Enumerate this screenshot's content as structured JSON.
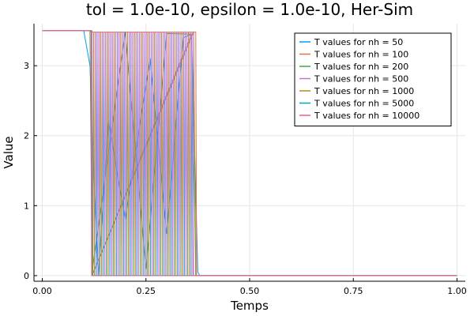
{
  "chart_data": {
    "type": "line",
    "title": "tol = 1.0e-10, epsilon = 1.0e-10, Her-Sim",
    "xlabel": "Temps",
    "ylabel": "Value",
    "xlim": [
      -0.02,
      1.02
    ],
    "ylim": [
      -0.08,
      3.6
    ],
    "x_ticks": [
      0.0,
      0.25,
      0.5,
      0.75,
      1.0
    ],
    "x_tick_labels": [
      "0.00",
      "0.25",
      "0.50",
      "0.75",
      "1.00"
    ],
    "y_ticks": [
      0,
      1,
      2,
      3
    ],
    "y_tick_labels": [
      "0",
      "1",
      "2",
      "3"
    ],
    "grid": true,
    "legend_position": "top-right",
    "series": [
      {
        "name": "T values for nh = 50",
        "color": "#009AFA",
        "points": [
          [
            0.0,
            3.5
          ],
          [
            0.1,
            3.5
          ],
          [
            0.115,
            3.0
          ],
          [
            0.125,
            1.4
          ],
          [
            0.135,
            0.0
          ],
          [
            0.16,
            2.2
          ],
          [
            0.2,
            0.8
          ],
          [
            0.26,
            3.1
          ],
          [
            0.3,
            0.6
          ],
          [
            0.34,
            3.4
          ],
          [
            0.36,
            3.45
          ],
          [
            0.375,
            0.05
          ],
          [
            0.38,
            0.0
          ],
          [
            1.0,
            0.0
          ]
        ]
      },
      {
        "name": "T values for nh = 100",
        "color": "#E36F47",
        "points": [
          [
            0.0,
            3.5
          ],
          [
            0.115,
            3.5
          ],
          [
            0.118,
            3.48
          ],
          [
            0.37,
            3.48
          ],
          [
            0.372,
            0.0
          ],
          [
            1.0,
            0.0
          ]
        ]
      },
      {
        "name": "T values for nh = 200",
        "color": "#3EA44E",
        "points": [
          [
            0.0,
            3.5
          ],
          [
            0.115,
            3.5
          ],
          [
            0.12,
            0.05
          ],
          [
            0.2,
            3.48
          ],
          [
            0.25,
            0.1
          ],
          [
            0.3,
            3.46
          ],
          [
            0.36,
            3.45
          ],
          [
            0.37,
            0.0
          ],
          [
            1.0,
            0.0
          ]
        ]
      },
      {
        "name": "T values for nh = 500",
        "color": "#C371D2",
        "points": [
          [
            0.0,
            3.5
          ],
          [
            0.118,
            3.5
          ],
          [
            0.12,
            0.0
          ],
          [
            0.36,
            3.45
          ],
          [
            0.365,
            0.0
          ],
          [
            1.0,
            0.0
          ]
        ]
      },
      {
        "name": "T values for nh = 1000",
        "color": "#AC8D18",
        "points": [
          [
            0.0,
            3.5
          ],
          [
            0.12,
            3.5
          ],
          [
            0.12,
            0.0
          ],
          [
            0.365,
            3.48
          ],
          [
            0.37,
            0.0
          ],
          [
            1.0,
            0.0
          ]
        ]
      },
      {
        "name": "T values for nh = 5000",
        "color": "#00A9AD",
        "points": [
          [
            0.0,
            3.5
          ],
          [
            0.118,
            3.5
          ],
          [
            0.119,
            0.0
          ],
          [
            1.0,
            0.0
          ]
        ]
      },
      {
        "name": "T values for nh = 10000",
        "color": "#ED5E93",
        "points": [
          [
            0.0,
            3.5
          ],
          [
            0.118,
            3.5
          ],
          [
            0.119,
            0.0
          ],
          [
            1.0,
            0.0
          ]
        ]
      }
    ]
  }
}
